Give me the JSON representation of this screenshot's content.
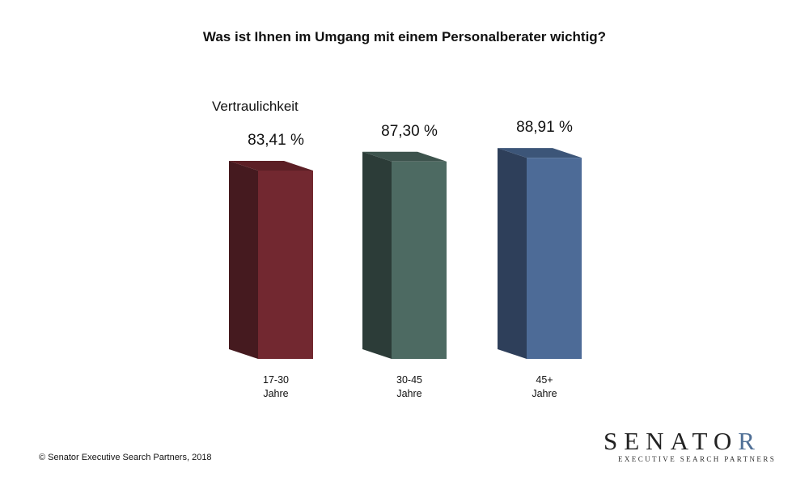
{
  "chart_data": {
    "type": "bar",
    "title": "Was ist Ihnen im Umgang mit einem Personalberater wichtig?",
    "subtitle": "Vertraulichkeit",
    "categories": [
      [
        "17-30",
        "Jahre"
      ],
      [
        "30-45",
        "Jahre"
      ],
      [
        "45+",
        "Jahre"
      ]
    ],
    "values": [
      83.41,
      87.3,
      88.91
    ],
    "value_labels": [
      "83,41 %",
      "87,30 %",
      "88,91 %"
    ],
    "colors": {
      "front": [
        "#722830",
        "#4d6a62",
        "#4d6b97"
      ],
      "side": [
        "#451a1f",
        "#2c3c38",
        "#2e3f5a"
      ],
      "top": [
        "#5c1f25",
        "#3d534d",
        "#3c5578"
      ]
    },
    "style": "3d-column",
    "grid": false,
    "legend": "none"
  },
  "footer": {
    "copyright": "© Senator Executive Search Partners, 2018"
  },
  "logo": {
    "main_text": "SENATO",
    "accent_letter": "R",
    "tagline": "EXECUTIVE SEARCH PARTNERS",
    "accent_color": "#4f6f96"
  }
}
